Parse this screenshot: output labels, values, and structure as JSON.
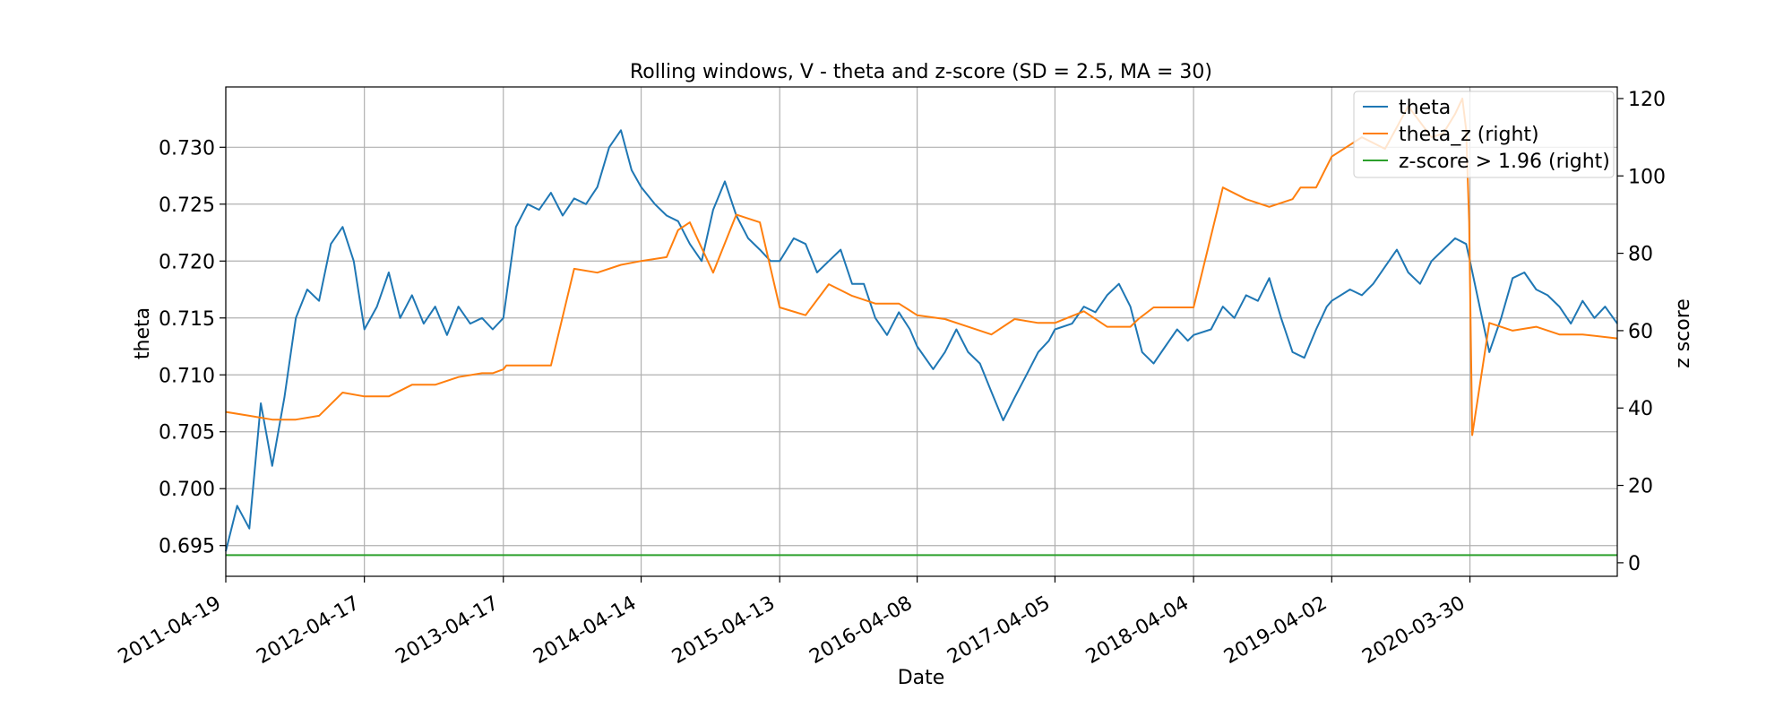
{
  "chart_data": {
    "type": "line",
    "title": "Rolling windows, V - theta and z-score (SD = 2.5, MA = 30)",
    "xlabel": "Date",
    "ylabel_left": "theta",
    "ylabel_right": "z score",
    "x_range": [
      "2011-04-19",
      "2021-04-21"
    ],
    "ylim_left": [
      0.6923,
      0.7353
    ],
    "ylim_right": [
      -3.5,
      123
    ],
    "grid": true,
    "legend_position": "top-right",
    "x_tick_labels": [
      "2011-04-19",
      "2012-04-17",
      "2013-04-17",
      "2014-04-14",
      "2015-04-13",
      "2016-04-08",
      "2017-04-05",
      "2018-04-04",
      "2019-04-02",
      "2020-03-30"
    ],
    "y_left_tick_labels": [
      "0.695",
      "0.700",
      "0.705",
      "0.710",
      "0.715",
      "0.720",
      "0.725",
      "0.730"
    ],
    "y_left_tick_values": [
      0.695,
      0.7,
      0.705,
      0.71,
      0.715,
      0.72,
      0.725,
      0.73
    ],
    "y_right_tick_labels": [
      "0",
      "20",
      "40",
      "60",
      "80",
      "100",
      "120"
    ],
    "y_right_tick_values": [
      0,
      20,
      40,
      60,
      80,
      100,
      120
    ],
    "series": [
      {
        "name": "theta",
        "axis": "left",
        "color": "#1f77b4",
        "x": [
          "2011-04-19",
          "2011-05-19",
          "2011-06-20",
          "2011-07-20",
          "2011-08-19",
          "2011-09-20",
          "2011-10-20",
          "2011-11-19",
          "2011-12-20",
          "2012-01-20",
          "2012-02-20",
          "2012-03-20",
          "2012-04-17",
          "2012-05-20",
          "2012-06-20",
          "2012-07-20",
          "2012-08-20",
          "2012-09-20",
          "2012-10-20",
          "2012-11-20",
          "2012-12-20",
          "2013-01-20",
          "2013-02-20",
          "2013-03-20",
          "2013-04-17",
          "2013-05-20",
          "2013-06-20",
          "2013-07-20",
          "2013-08-20",
          "2013-09-20",
          "2013-10-20",
          "2013-11-20",
          "2013-12-20",
          "2014-01-20",
          "2014-02-20",
          "2014-03-20",
          "2014-04-14",
          "2014-05-20",
          "2014-06-20",
          "2014-07-20",
          "2014-08-20",
          "2014-09-20",
          "2014-10-20",
          "2014-11-20",
          "2014-12-20",
          "2015-01-20",
          "2015-02-20",
          "2015-03-20",
          "2015-04-13",
          "2015-05-20",
          "2015-06-20",
          "2015-07-20",
          "2015-08-20",
          "2015-09-20",
          "2015-10-20",
          "2015-11-20",
          "2015-12-20",
          "2016-01-20",
          "2016-02-20",
          "2016-03-20",
          "2016-04-08",
          "2016-05-20",
          "2016-06-20",
          "2016-07-20",
          "2016-08-20",
          "2016-09-20",
          "2016-10-20",
          "2016-11-20",
          "2016-12-20",
          "2017-01-20",
          "2017-02-20",
          "2017-03-20",
          "2017-04-05",
          "2017-05-20",
          "2017-06-20",
          "2017-07-20",
          "2017-08-20",
          "2017-09-20",
          "2017-10-20",
          "2017-11-20",
          "2017-12-20",
          "2018-01-20",
          "2018-02-20",
          "2018-03-20",
          "2018-04-04",
          "2018-05-20",
          "2018-06-20",
          "2018-07-20",
          "2018-08-20",
          "2018-09-20",
          "2018-10-20",
          "2018-11-20",
          "2018-12-20",
          "2019-01-20",
          "2019-02-20",
          "2019-03-20",
          "2019-04-02",
          "2019-05-20",
          "2019-06-20",
          "2019-07-20",
          "2019-08-20",
          "2019-09-20",
          "2019-10-20",
          "2019-11-20",
          "2019-12-20",
          "2020-01-20",
          "2020-02-20",
          "2020-03-20",
          "2020-03-30",
          "2020-05-20",
          "2020-06-20",
          "2020-07-20",
          "2020-08-20",
          "2020-09-20",
          "2020-10-20",
          "2020-11-20",
          "2020-12-20",
          "2021-01-20",
          "2021-02-20",
          "2021-03-20",
          "2021-04-21"
        ],
        "values": [
          0.6945,
          0.6985,
          0.6965,
          0.7075,
          0.702,
          0.708,
          0.715,
          0.7175,
          0.7165,
          0.7215,
          0.723,
          0.72,
          0.714,
          0.716,
          0.719,
          0.715,
          0.717,
          0.7145,
          0.716,
          0.7135,
          0.716,
          0.7145,
          0.715,
          0.714,
          0.715,
          0.723,
          0.725,
          0.7245,
          0.726,
          0.724,
          0.7255,
          0.725,
          0.7265,
          0.73,
          0.7315,
          0.728,
          0.7265,
          0.725,
          0.724,
          0.7235,
          0.7215,
          0.72,
          0.7245,
          0.727,
          0.724,
          0.722,
          0.721,
          0.72,
          0.72,
          0.722,
          0.7215,
          0.719,
          0.72,
          0.721,
          0.718,
          0.718,
          0.715,
          0.7135,
          0.7155,
          0.714,
          0.7125,
          0.7105,
          0.712,
          0.714,
          0.712,
          0.711,
          0.7085,
          0.706,
          0.708,
          0.71,
          0.712,
          0.713,
          0.714,
          0.7145,
          0.716,
          0.7155,
          0.717,
          0.718,
          0.716,
          0.712,
          0.711,
          0.7125,
          0.714,
          0.713,
          0.7135,
          0.714,
          0.716,
          0.715,
          0.717,
          0.7165,
          0.7185,
          0.715,
          0.712,
          0.7115,
          0.714,
          0.716,
          0.7165,
          0.7175,
          0.717,
          0.718,
          0.7195,
          0.721,
          0.719,
          0.718,
          0.72,
          0.721,
          0.722,
          0.7215,
          0.72,
          0.712,
          0.715,
          0.7185,
          0.719,
          0.7175,
          0.717,
          0.716,
          0.7145,
          0.7165,
          0.715,
          0.716,
          0.7145
        ]
      },
      {
        "name": "theta_z (right)",
        "axis": "right",
        "color": "#ff7f0e",
        "x": [
          "2011-04-19",
          "2011-06-20",
          "2011-08-19",
          "2011-10-20",
          "2011-12-20",
          "2012-02-20",
          "2012-04-17",
          "2012-06-20",
          "2012-08-20",
          "2012-10-20",
          "2012-12-20",
          "2013-02-20",
          "2013-03-20",
          "2013-04-17",
          "2013-04-25",
          "2013-06-20",
          "2013-08-20",
          "2013-10-20",
          "2013-12-20",
          "2014-02-20",
          "2014-04-14",
          "2014-06-20",
          "2014-07-20",
          "2014-08-20",
          "2014-10-20",
          "2014-12-20",
          "2015-01-20",
          "2015-02-20",
          "2015-04-13",
          "2015-06-20",
          "2015-08-20",
          "2015-10-20",
          "2015-12-20",
          "2016-02-20",
          "2016-04-08",
          "2016-06-20",
          "2016-08-20",
          "2016-10-20",
          "2016-12-20",
          "2017-02-20",
          "2017-04-05",
          "2017-06-20",
          "2017-08-20",
          "2017-10-20",
          "2017-11-10",
          "2017-12-20",
          "2018-02-20",
          "2018-04-04",
          "2018-06-20",
          "2018-08-20",
          "2018-10-20",
          "2018-12-20",
          "2019-01-10",
          "2019-02-20",
          "2019-04-02",
          "2019-06-20",
          "2019-08-20",
          "2019-10-20",
          "2019-12-20",
          "2020-01-20",
          "2020-02-20",
          "2020-03-10",
          "2020-03-20",
          "2020-03-28",
          "2020-04-05",
          "2020-05-20",
          "2020-07-20",
          "2020-09-20",
          "2020-11-20",
          "2021-01-20",
          "2021-04-21"
        ],
        "values": [
          39,
          38,
          37,
          37,
          38,
          44,
          43,
          43,
          46,
          46,
          48,
          49,
          49,
          50,
          51,
          51,
          51,
          76,
          75,
          77,
          78,
          79,
          86,
          88,
          75,
          90,
          89,
          88,
          66,
          64,
          72,
          69,
          67,
          67,
          64,
          63,
          61,
          59,
          63,
          62,
          62,
          65,
          61,
          61,
          63,
          66,
          66,
          66,
          97,
          94,
          92,
          94,
          97,
          97,
          105,
          110,
          107,
          118,
          110,
          111,
          116,
          120,
          112,
          88,
          33,
          62,
          60,
          61,
          59,
          59,
          58
        ]
      },
      {
        "name": "z-score > 1.96 (right)",
        "axis": "right",
        "color": "#2ca02c",
        "x": [
          "2011-04-19",
          "2021-04-21"
        ],
        "values": [
          1.96,
          1.96
        ]
      }
    ]
  }
}
